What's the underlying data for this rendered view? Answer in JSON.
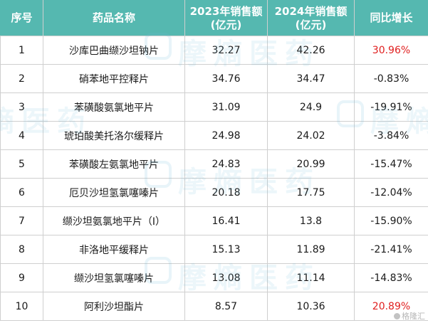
{
  "table": {
    "headers": [
      "序号",
      "药品名称",
      "2023年销售额\n(亿元)",
      "2024年销售额\n(亿元)",
      "同比增长"
    ],
    "rows": [
      {
        "no": "1",
        "name": "沙库巴曲缬沙坦钠片",
        "y2023": "32.27",
        "y2024": "42.26",
        "yoy": "30.96%",
        "highlight": true
      },
      {
        "no": "2",
        "name": "硝苯地平控释片",
        "y2023": "34.76",
        "y2024": "34.47",
        "yoy": "-0.83%",
        "highlight": false
      },
      {
        "no": "3",
        "name": "苯磺酸氨氯地平片",
        "y2023": "31.09",
        "y2024": "24.9",
        "yoy": "-19.91%",
        "highlight": false
      },
      {
        "no": "4",
        "name": "琥珀酸美托洛尔缓释片",
        "y2023": "24.98",
        "y2024": "24.02",
        "yoy": "-3.84%",
        "highlight": false
      },
      {
        "no": "5",
        "name": "苯磺酸左氨氯地平片",
        "y2023": "24.83",
        "y2024": "20.99",
        "yoy": "-15.47%",
        "highlight": false
      },
      {
        "no": "6",
        "name": "厄贝沙坦氢氯噻嗪片",
        "y2023": "20.18",
        "y2024": "17.75",
        "yoy": "-12.04%",
        "highlight": false
      },
      {
        "no": "7",
        "name": "缬沙坦氨氯地平片（Ⅰ）",
        "y2023": "16.41",
        "y2024": "13.8",
        "yoy": "-15.90%",
        "highlight": false
      },
      {
        "no": "8",
        "name": "非洛地平缓释片",
        "y2023": "15.13",
        "y2024": "11.89",
        "yoy": "-21.41%",
        "highlight": false
      },
      {
        "no": "9",
        "name": "缬沙坦氢氯噻嗪片",
        "y2023": "13.08",
        "y2024": "11.14",
        "yoy": "-14.83%",
        "highlight": false
      },
      {
        "no": "10",
        "name": "阿利沙坦酯片",
        "y2023": "8.57",
        "y2024": "10.36",
        "yoy": "20.89%",
        "highlight": true
      }
    ]
  },
  "watermark": {
    "text": "摩熵医药"
  },
  "corner_logo": {
    "text": "格隆汇"
  },
  "colors": {
    "header_bg": "#55b8b0",
    "highlight_text": "#e02020"
  }
}
